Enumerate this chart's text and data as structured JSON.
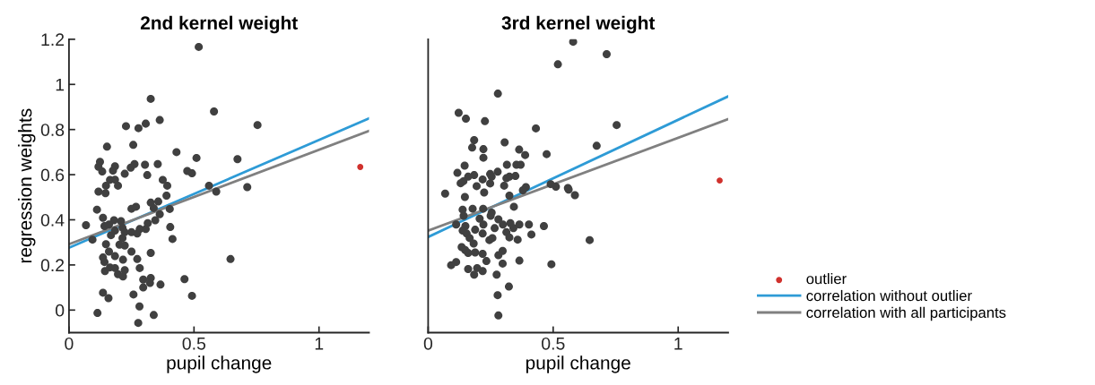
{
  "chart_data": [
    {
      "type": "scatter",
      "title": "2nd kernel weight",
      "xlabel": "pupil change",
      "ylabel": "regression weights",
      "xlim": [
        0,
        1.2
      ],
      "ylim": [
        -0.1,
        1.2
      ],
      "xticks": [
        0,
        0.5,
        1
      ],
      "yticks": [
        0,
        0.2,
        0.4,
        0.6,
        0.8,
        1,
        1.2
      ],
      "grid": false,
      "legend": false,
      "series": [
        {
          "marker": "circle",
          "color": "#404040",
          "x": [
            0.519,
            0.327,
            0.58,
            0.754,
            0.228,
            0.363,
            0.278,
            0.307,
            0.152,
            0.257,
            0.43,
            0.51,
            0.674,
            0.124,
            0.118,
            0.133,
            0.184,
            0.176,
            0.262,
            0.247,
            0.304,
            0.355,
            0.313,
            0.223,
            0.473,
            0.492,
            0.375,
            0.164,
            0.184,
            0.148,
            0.196,
            0.393,
            0.56,
            0.713,
            0.589,
            0.118,
            0.146,
            0.39,
            0.327,
            0.357,
            0.25,
            0.268,
            0.112,
            0.403,
            0.068,
            0.136,
            0.18,
            0.208,
            0.142,
            0.16,
            0.184,
            0.168,
            0.094,
            0.214,
            0.223,
            0.25,
            0.283,
            0.273,
            0.307,
            0.315,
            0.345,
            0.363,
            0.339,
            0.405,
            0.414,
            0.214,
            0.202,
            0.223,
            0.148,
            0.25,
            0.327,
            0.16,
            0.136,
            0.184,
            0.142,
            0.216,
            0.273,
            0.164,
            0.184,
            0.144,
            0.223,
            0.283,
            0.196,
            0.216,
            0.646,
            0.297,
            0.327,
            0.324,
            0.297,
            0.366,
            0.462,
            0.136,
            0.158,
            0.258,
            0.492,
            0.114,
            0.339,
            0.282,
            0.277
          ],
          "values": [
            1.166,
            0.936,
            0.88,
            0.82,
            0.815,
            0.842,
            0.806,
            0.826,
            0.724,
            0.732,
            0.7,
            0.674,
            0.669,
            0.657,
            0.635,
            0.614,
            0.637,
            0.618,
            0.647,
            0.631,
            0.644,
            0.647,
            0.598,
            0.604,
            0.616,
            0.606,
            0.577,
            0.577,
            0.578,
            0.551,
            0.551,
            0.551,
            0.551,
            0.545,
            0.525,
            0.525,
            0.518,
            0.507,
            0.476,
            0.481,
            0.449,
            0.458,
            0.445,
            0.448,
            0.376,
            0.409,
            0.398,
            0.394,
            0.372,
            0.379,
            0.352,
            0.332,
            0.312,
            0.365,
            0.345,
            0.345,
            0.359,
            0.339,
            0.359,
            0.385,
            0.398,
            0.425,
            0.452,
            0.368,
            0.315,
            0.319,
            0.29,
            0.286,
            0.292,
            0.259,
            0.253,
            0.259,
            0.233,
            0.239,
            0.213,
            0.223,
            0.226,
            0.189,
            0.186,
            0.173,
            0.177,
            0.186,
            0.159,
            0.149,
            0.226,
            0.135,
            0.142,
            0.12,
            0.1,
            0.113,
            0.137,
            0.077,
            0.053,
            0.069,
            0.063,
            -0.013,
            -0.022,
            0.016,
            -0.057
          ]
        },
        {
          "marker": "circle",
          "color": "#d0312d",
          "x": [
            1.165
          ],
          "values": [
            0.634
          ]
        },
        {
          "type": "line",
          "color": "#2e9bd6",
          "x": [
            0,
            1.2
          ],
          "values": [
            0.276,
            0.849
          ]
        },
        {
          "type": "line",
          "color": "#808080",
          "x": [
            0,
            1.2
          ],
          "values": [
            0.292,
            0.794
          ]
        }
      ]
    },
    {
      "type": "scatter",
      "title": "3rd kernel weight",
      "xlabel": "pupil change",
      "xlim": [
        0,
        1.2
      ],
      "ylim": [
        -0.1,
        1.2
      ],
      "xticks": [
        0,
        0.5,
        1
      ],
      "tick_labels": "x",
      "grid": false,
      "legend": "right",
      "series": [
        {
          "marker": "circle",
          "color": "#404040",
          "x": [
            0.58,
            0.714,
            0.519,
            0.279,
            0.122,
            0.151,
            0.227,
            0.754,
            0.431,
            0.184,
            0.306,
            0.674,
            0.176,
            0.221,
            0.364,
            0.388,
            0.474,
            0.221,
            0.146,
            0.315,
            0.353,
            0.37,
            0.117,
            0.278,
            0.248,
            0.16,
            0.184,
            0.254,
            0.325,
            0.349,
            0.313,
            0.218,
            0.141,
            0.13,
            0.248,
            0.194,
            0.304,
            0.391,
            0.49,
            0.511,
            0.559,
            0.562,
            0.587,
            0.068,
            0.147,
            0.224,
            0.379,
            0.325,
            0.343,
            0.138,
            0.178,
            0.22,
            0.254,
            0.25,
            0.142,
            0.281,
            0.206,
            0.112,
            0.149,
            0.221,
            0.299,
            0.329,
            0.365,
            0.403,
            0.463,
            0.341,
            0.266,
            0.188,
            0.138,
            0.313,
            0.413,
            0.218,
            0.154,
            0.166,
            0.325,
            0.358,
            0.257,
            0.245,
            0.646,
            0.182,
            0.134,
            0.148,
            0.188,
            0.16,
            0.218,
            0.298,
            0.281,
            0.233,
            0.365,
            0.112,
            0.092,
            0.298,
            0.493,
            0.16,
            0.196,
            0.218,
            0.184,
            0.274,
            0.323,
            0.278,
            0.281
          ],
          "values": [
            1.189,
            1.134,
            1.089,
            0.959,
            0.874,
            0.848,
            0.837,
            0.82,
            0.805,
            0.753,
            0.743,
            0.728,
            0.72,
            0.713,
            0.711,
            0.687,
            0.691,
            0.675,
            0.64,
            0.644,
            0.644,
            0.644,
            0.608,
            0.613,
            0.603,
            0.591,
            0.598,
            0.591,
            0.591,
            0.594,
            0.584,
            0.579,
            0.571,
            0.562,
            0.561,
            0.549,
            0.551,
            0.545,
            0.558,
            0.547,
            0.541,
            0.534,
            0.509,
            0.516,
            0.501,
            0.521,
            0.531,
            0.507,
            0.458,
            0.445,
            0.449,
            0.449,
            0.432,
            0.418,
            0.418,
            0.402,
            0.405,
            0.379,
            0.372,
            0.379,
            0.379,
            0.385,
            0.379,
            0.379,
            0.372,
            0.363,
            0.363,
            0.356,
            0.352,
            0.345,
            0.335,
            0.339,
            0.339,
            0.319,
            0.322,
            0.312,
            0.319,
            0.31,
            0.31,
            0.295,
            0.279,
            0.266,
            0.255,
            0.253,
            0.249,
            0.262,
            0.243,
            0.217,
            0.219,
            0.213,
            0.199,
            0.206,
            0.203,
            0.182,
            0.186,
            0.173,
            0.157,
            0.157,
            0.104,
            0.066,
            -0.024
          ]
        },
        {
          "marker": "circle",
          "name": "outlier",
          "color": "#d0312d",
          "x": [
            1.166
          ],
          "values": [
            0.574
          ]
        },
        {
          "type": "line",
          "name": "correlation without outlier",
          "color": "#2e9bd6",
          "x": [
            0,
            1.2
          ],
          "values": [
            0.324,
            0.947
          ]
        },
        {
          "type": "line",
          "name": "correlation with all participants",
          "color": "#808080",
          "x": [
            0,
            1.2
          ],
          "values": [
            0.352,
            0.846
          ]
        }
      ]
    }
  ]
}
